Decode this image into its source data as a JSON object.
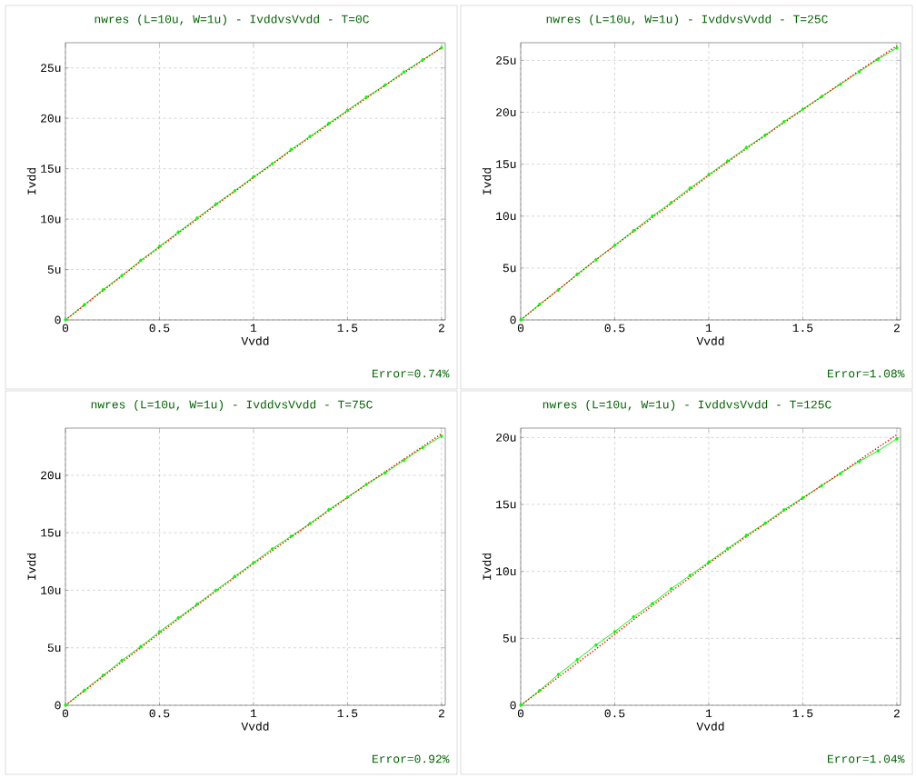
{
  "chart_data": [
    {
      "type": "line",
      "title": "nwres (L=10u, W=1u) - IvddvsVvdd - T=0C",
      "xlabel": "Vvdd",
      "ylabel": "Ivdd",
      "annotations": [
        "Error=0.74%"
      ],
      "xlim": [
        0,
        2.02
      ],
      "xticks": [
        0,
        0.5,
        1,
        1.5,
        2
      ],
      "ylim": [
        0,
        27.5
      ],
      "yticks": [
        0,
        {
          "value": 5,
          "label": "5u"
        },
        {
          "value": 10,
          "label": "10u"
        },
        {
          "value": 15,
          "label": "15u"
        },
        {
          "value": 20,
          "label": "20u"
        },
        {
          "value": 25,
          "label": "25u"
        }
      ],
      "grid": true,
      "series": [
        {
          "color": "#ff0000",
          "line_style": "dotted",
          "marker": "none",
          "x": [
            0,
            0.2,
            0.4,
            0.6,
            0.8,
            1.0,
            1.2,
            1.4,
            1.6,
            1.8,
            2.0
          ],
          "values": [
            0,
            2.9,
            5.8,
            8.6,
            11.4,
            14.1,
            16.8,
            19.4,
            22.0,
            24.5,
            27.0
          ]
        },
        {
          "color": "#00ff00",
          "line_style": "solid",
          "marker": "diamond",
          "x": [
            0,
            0.1,
            0.2,
            0.3,
            0.4,
            0.5,
            0.6,
            0.7,
            0.8,
            0.9,
            1.0,
            1.1,
            1.2,
            1.3,
            1.4,
            1.5,
            1.6,
            1.7,
            1.8,
            1.9,
            2.0
          ],
          "values": [
            0,
            1.5,
            3.0,
            4.4,
            5.9,
            7.3,
            8.7,
            10.1,
            11.5,
            12.8,
            14.2,
            15.5,
            16.9,
            18.2,
            19.5,
            20.8,
            22.1,
            23.3,
            24.6,
            25.8,
            27.0
          ]
        }
      ]
    },
    {
      "type": "line",
      "title": "nwres (L=10u, W=1u) - IvddvsVvdd - T=25C",
      "xlabel": "Vvdd",
      "ylabel": "Ivdd",
      "annotations": [
        "Error=1.08%"
      ],
      "xlim": [
        0,
        2.02
      ],
      "xticks": [
        0,
        0.5,
        1,
        1.5,
        2
      ],
      "ylim": [
        0,
        26.7
      ],
      "yticks": [
        0,
        {
          "value": 5,
          "label": "5u"
        },
        {
          "value": 10,
          "label": "10u"
        },
        {
          "value": 15,
          "label": "15u"
        },
        {
          "value": 20,
          "label": "20u"
        },
        {
          "value": 25,
          "label": "25u"
        }
      ],
      "grid": true,
      "series": [
        {
          "color": "#ff0000",
          "line_style": "dotted",
          "marker": "none",
          "x": [
            0,
            0.2,
            0.4,
            0.6,
            0.8,
            1.0,
            1.2,
            1.4,
            1.6,
            1.8,
            2.0
          ],
          "values": [
            0,
            2.9,
            5.8,
            8.5,
            11.2,
            13.9,
            16.5,
            19.0,
            21.5,
            24.0,
            26.4
          ]
        },
        {
          "color": "#00ff00",
          "line_style": "solid",
          "marker": "diamond",
          "x": [
            0,
            0.1,
            0.2,
            0.3,
            0.4,
            0.5,
            0.6,
            0.7,
            0.8,
            0.9,
            1.0,
            1.1,
            1.2,
            1.3,
            1.4,
            1.5,
            1.6,
            1.7,
            1.8,
            1.9,
            2.0
          ],
          "values": [
            0,
            1.5,
            2.9,
            4.4,
            5.8,
            7.2,
            8.6,
            10.0,
            11.3,
            12.7,
            14.0,
            15.3,
            16.6,
            17.8,
            19.1,
            20.3,
            21.5,
            22.7,
            23.9,
            25.1,
            26.2
          ]
        }
      ]
    },
    {
      "type": "line",
      "title": "nwres (L=10u, W=1u) - IvddvsVvdd - T=75C",
      "xlabel": "Vvdd",
      "ylabel": "Ivdd",
      "annotations": [
        "Error=0.92%"
      ],
      "xlim": [
        0,
        2.02
      ],
      "xticks": [
        0,
        0.5,
        1,
        1.5,
        2
      ],
      "ylim": [
        0,
        24.1
      ],
      "yticks": [
        0,
        {
          "value": 5,
          "label": "5u"
        },
        {
          "value": 10,
          "label": "10u"
        },
        {
          "value": 15,
          "label": "15u"
        },
        {
          "value": 20,
          "label": "20u"
        }
      ],
      "grid": true,
      "series": [
        {
          "color": "#ff0000",
          "line_style": "dotted",
          "marker": "none",
          "x": [
            0,
            0.2,
            0.4,
            0.6,
            0.8,
            1.0,
            1.2,
            1.4,
            1.6,
            1.8,
            2.0
          ],
          "values": [
            0,
            2.5,
            5.0,
            7.5,
            9.9,
            12.3,
            14.6,
            16.9,
            19.2,
            21.4,
            23.6
          ]
        },
        {
          "color": "#00ff00",
          "line_style": "solid",
          "marker": "diamond",
          "x": [
            0,
            0.1,
            0.2,
            0.3,
            0.4,
            0.5,
            0.6,
            0.7,
            0.8,
            0.9,
            1.0,
            1.1,
            1.2,
            1.3,
            1.4,
            1.5,
            1.6,
            1.7,
            1.8,
            1.9,
            2.0
          ],
          "values": [
            0,
            1.3,
            2.6,
            3.9,
            5.1,
            6.4,
            7.6,
            8.8,
            10.0,
            11.2,
            12.4,
            13.6,
            14.7,
            15.8,
            17.0,
            18.1,
            19.2,
            20.2,
            21.3,
            22.4,
            23.4
          ]
        }
      ]
    },
    {
      "type": "line",
      "title": "nwres (L=10u, W=1u) - IvddvsVvdd - T=125C",
      "xlabel": "Vvdd",
      "ylabel": "Ivdd",
      "annotations": [
        "Error=1.04%"
      ],
      "xlim": [
        0,
        2.02
      ],
      "xticks": [
        0,
        0.5,
        1,
        1.5,
        2
      ],
      "ylim": [
        0,
        20.7
      ],
      "yticks": [
        0,
        {
          "value": 5,
          "label": "5u"
        },
        {
          "value": 10,
          "label": "10u"
        },
        {
          "value": 15,
          "label": "15u"
        },
        {
          "value": 20,
          "label": "20u"
        }
      ],
      "grid": true,
      "series": [
        {
          "color": "#ff0000",
          "line_style": "dotted",
          "marker": "none",
          "x": [
            0,
            0.2,
            0.4,
            0.6,
            0.8,
            1.0,
            1.2,
            1.4,
            1.6,
            1.8,
            2.0
          ],
          "values": [
            0,
            2.1,
            4.2,
            6.4,
            8.5,
            10.6,
            12.6,
            14.5,
            16.4,
            18.3,
            20.2
          ]
        },
        {
          "color": "#00ff00",
          "line_style": "solid",
          "marker": "diamond",
          "x": [
            0,
            0.1,
            0.2,
            0.3,
            0.4,
            0.5,
            0.6,
            0.7,
            0.8,
            0.9,
            1.0,
            1.1,
            1.2,
            1.3,
            1.4,
            1.5,
            1.6,
            1.7,
            1.8,
            1.9,
            2.0
          ],
          "values": [
            0,
            1.1,
            2.3,
            3.4,
            4.5,
            5.5,
            6.6,
            7.6,
            8.7,
            9.7,
            10.7,
            11.7,
            12.7,
            13.6,
            14.6,
            15.5,
            16.4,
            17.3,
            18.2,
            19.0,
            19.9
          ]
        }
      ]
    }
  ]
}
